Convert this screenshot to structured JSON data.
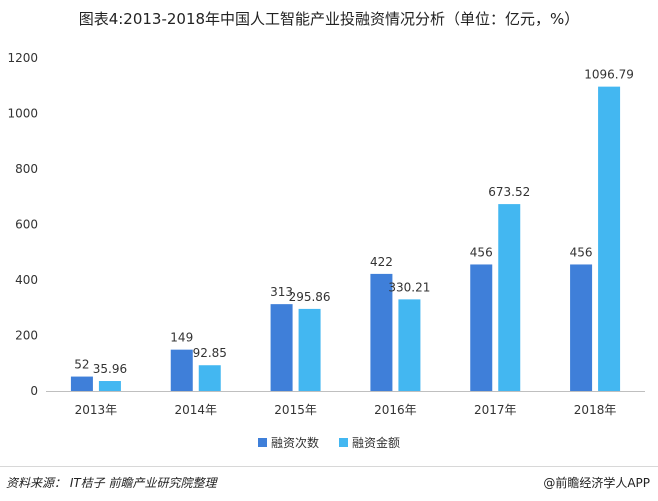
{
  "title": "图表4:2013-2018年中国人工智能产业投融资情况分析（单位：亿元，%）",
  "source": "资料来源：  IT桔子  前瞻产业研究院整理",
  "brand": "@前瞻经济学人APP",
  "colors": {
    "series1": "#3f7fd9",
    "series2": "#43b7f1"
  },
  "chart_data": {
    "type": "bar",
    "categories": [
      "2013年",
      "2014年",
      "2015年",
      "2016年",
      "2017年",
      "2018年"
    ],
    "series": [
      {
        "name": "融资次数",
        "values": [
          52,
          149,
          313,
          422,
          456,
          456
        ]
      },
      {
        "name": "融资金额",
        "values": [
          35.96,
          92.85,
          295.86,
          330.21,
          673.52,
          1096.79
        ]
      }
    ],
    "value_labels": [
      [
        "52",
        "149",
        "313",
        "422",
        "456",
        "456"
      ],
      [
        "35.96",
        "92.85",
        "295.86",
        "330.21",
        "673.52",
        "1096.79"
      ]
    ],
    "ylim": [
      0,
      1200
    ],
    "yticks": [
      0,
      200,
      400,
      600,
      800,
      1000,
      1200
    ],
    "grid": false,
    "legend": "bottom"
  }
}
